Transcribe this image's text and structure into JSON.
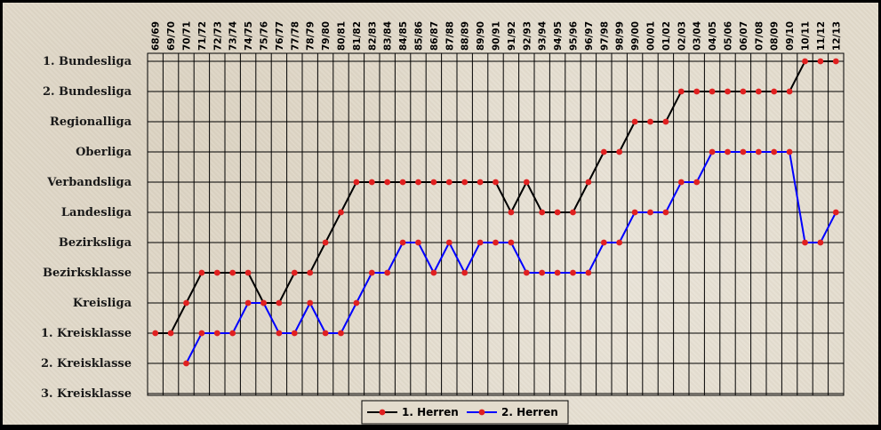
{
  "chart_data": {
    "type": "line",
    "title": "",
    "xlabel": "",
    "ylabel": "",
    "categories": [
      "68/69",
      "69/70",
      "70/71",
      "71/72",
      "72/73",
      "73/74",
      "74/75",
      "75/76",
      "76/77",
      "77/78",
      "78/79",
      "79/80",
      "80/81",
      "81/82",
      "82/83",
      "83/84",
      "84/85",
      "85/86",
      "86/87",
      "87/88",
      "88/89",
      "89/90",
      "90/91",
      "91/92",
      "92/93",
      "93/94",
      "94/95",
      "95/96",
      "96/97",
      "97/98",
      "98/99",
      "99/00",
      "00/01",
      "01/02",
      "02/03",
      "03/04",
      "04/05",
      "05/06",
      "06/07",
      "07/08",
      "08/09",
      "09/10",
      "10/11",
      "11/12",
      "12/13"
    ],
    "y_levels": [
      "1. Bundesliga",
      "2. Bundesliga",
      "Regionalliga",
      "Oberliga",
      "Verbandsliga",
      "Landesliga",
      "Bezirksliga",
      "Bezirksklasse",
      "Kreisliga",
      "1. Kreisklasse",
      "2. Kreisklasse",
      "3. Kreisklasse"
    ],
    "series": [
      {
        "name": "1. Herren",
        "color": "#000000",
        "marker_color": "#e02020",
        "values": [
          9,
          9,
          8,
          7,
          7,
          7,
          7,
          8,
          8,
          7,
          7,
          6,
          5,
          4,
          4,
          4,
          4,
          4,
          4,
          4,
          4,
          4,
          4,
          5,
          4,
          5,
          5,
          5,
          4,
          3,
          3,
          2,
          2,
          2,
          1,
          1,
          1,
          1,
          1,
          1,
          1,
          1,
          0,
          0,
          0
        ]
      },
      {
        "name": "2. Herren",
        "color": "#0000ff",
        "marker_color": "#e02020",
        "values": [
          null,
          null,
          10,
          9,
          9,
          9,
          8,
          8,
          9,
          9,
          8,
          9,
          9,
          8,
          7,
          7,
          6,
          6,
          7,
          6,
          7,
          6,
          6,
          6,
          7,
          7,
          7,
          7,
          7,
          6,
          6,
          5,
          5,
          5,
          4,
          4,
          3,
          3,
          3,
          3,
          3,
          3,
          6,
          6,
          5
        ]
      }
    ],
    "grid": true,
    "legend": "bottom-center"
  }
}
